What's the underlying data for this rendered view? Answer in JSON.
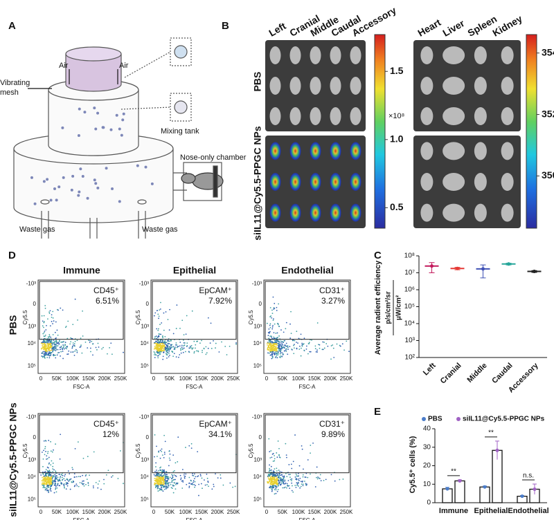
{
  "panel_labels": [
    "A",
    "B",
    "C",
    "D",
    "E"
  ],
  "diagram": {
    "labels": {
      "air_left": "Air",
      "air_right": "Air",
      "mesh_top": "Vibrating",
      "mesh_bottom": "mesh",
      "tank": "Mixing tank",
      "chamber": "Nose-only chamber",
      "waste_left": "Waste gas",
      "waste_right": "Waste gas"
    }
  },
  "imaging": {
    "lobes": [
      "Left",
      "Cranial",
      "Middle",
      "Caudal",
      "Accessory"
    ],
    "organs": [
      "Heart",
      "Liver",
      "Spleen",
      "Kidney"
    ],
    "groups": [
      "PBS",
      "siIL11@Cy5.5-PPGC NPs"
    ],
    "colorbars": [
      {
        "lim": [
          0.35,
          1.77
        ],
        "ticks": [
          0.5,
          {
            "value": 1,
            "label": "1.0"
          },
          1.5
        ],
        "unit": "×10⁸"
      },
      {
        "lim": [
          348.3,
          354.6
        ],
        "ticks": [
          350,
          352,
          354
        ]
      }
    ]
  },
  "flow": {
    "columns": [
      "Immune",
      "Epithelial",
      "Endothelial"
    ],
    "rows": [
      "PBS",
      "siIL11@Cy5.5-PPGC NPs"
    ],
    "y_label": "Cy5.5",
    "x_label": "FSC-A",
    "x_ticks": [
      "0",
      "50K",
      "100K",
      "150K",
      "200K",
      "250K"
    ],
    "y_ticks": [
      "-10³",
      "0",
      "10³",
      "10⁴",
      "10⁵"
    ],
    "gates": [
      [
        {
          "marker": "CD45⁺",
          "percent": 6.51,
          "value_label": "6.51%"
        },
        {
          "marker": "EpCAM⁺",
          "percent": 7.92,
          "value_label": "7.92%"
        },
        {
          "marker": "CD31⁺",
          "percent": 3.27,
          "value_label": "3.27%"
        }
      ],
      [
        {
          "marker": "CD45⁺",
          "percent": 12,
          "value_label": "12%"
        },
        {
          "marker": "EpCAM⁺",
          "percent": 34.1,
          "value_label": "34.1%"
        },
        {
          "marker": "CD31⁺",
          "percent": 9.89,
          "value_label": "9.89%"
        }
      ]
    ]
  },
  "chart_data": [
    {
      "type": "scatter",
      "y_label": "Average radient efficiency",
      "y_unit_top": "p/s/cm²/sr",
      "y_unit_bottom": "μW/cm²",
      "categories": [
        "Left",
        "Cranial",
        "Middle",
        "Caudal",
        "Accessory"
      ],
      "values": [
        25000000,
        18000000,
        17000000,
        33000000,
        12000000
      ],
      "errors": [
        15000000,
        3000000,
        12000000,
        4000000,
        1500000
      ],
      "colors": [
        "#c2185b",
        "#e53935",
        "#3f51b5",
        "#26a69a",
        "#222222"
      ],
      "log_scale": true,
      "ylim": [
        100,
        100000000
      ],
      "yticks": [
        {
          "value": 100,
          "label": "10²"
        },
        {
          "value": 1000,
          "label": "10³"
        },
        {
          "value": 10000,
          "label": "10⁴"
        },
        {
          "value": 100000,
          "label": "10⁵"
        },
        {
          "value": 1000000,
          "label": "10⁶"
        },
        {
          "value": 10000000,
          "label": "10⁷"
        },
        {
          "value": 100000000,
          "label": "10⁸"
        }
      ]
    },
    {
      "type": "bar",
      "y_label": "Cy5.5⁺ cells (%)",
      "categories": [
        "Immune",
        "Epithelial",
        "Endothelial"
      ],
      "series": [
        {
          "name": "PBS",
          "color": "#4a7cc9",
          "values": [
            7.5,
            8.5,
            3.5
          ],
          "errors": [
            0.8,
            0.5,
            0.4
          ]
        },
        {
          "name": "siIL11@Cy5.5-PPGC NPs",
          "color": "#a061c4",
          "values": [
            11.8,
            28.3,
            7.3
          ],
          "errors": [
            0.6,
            5.0,
            2.8
          ]
        }
      ],
      "significance": [
        "**",
        "**",
        "n.s."
      ],
      "ylim": [
        0,
        40
      ],
      "yticks": [
        0,
        10,
        20,
        30,
        40
      ]
    }
  ]
}
